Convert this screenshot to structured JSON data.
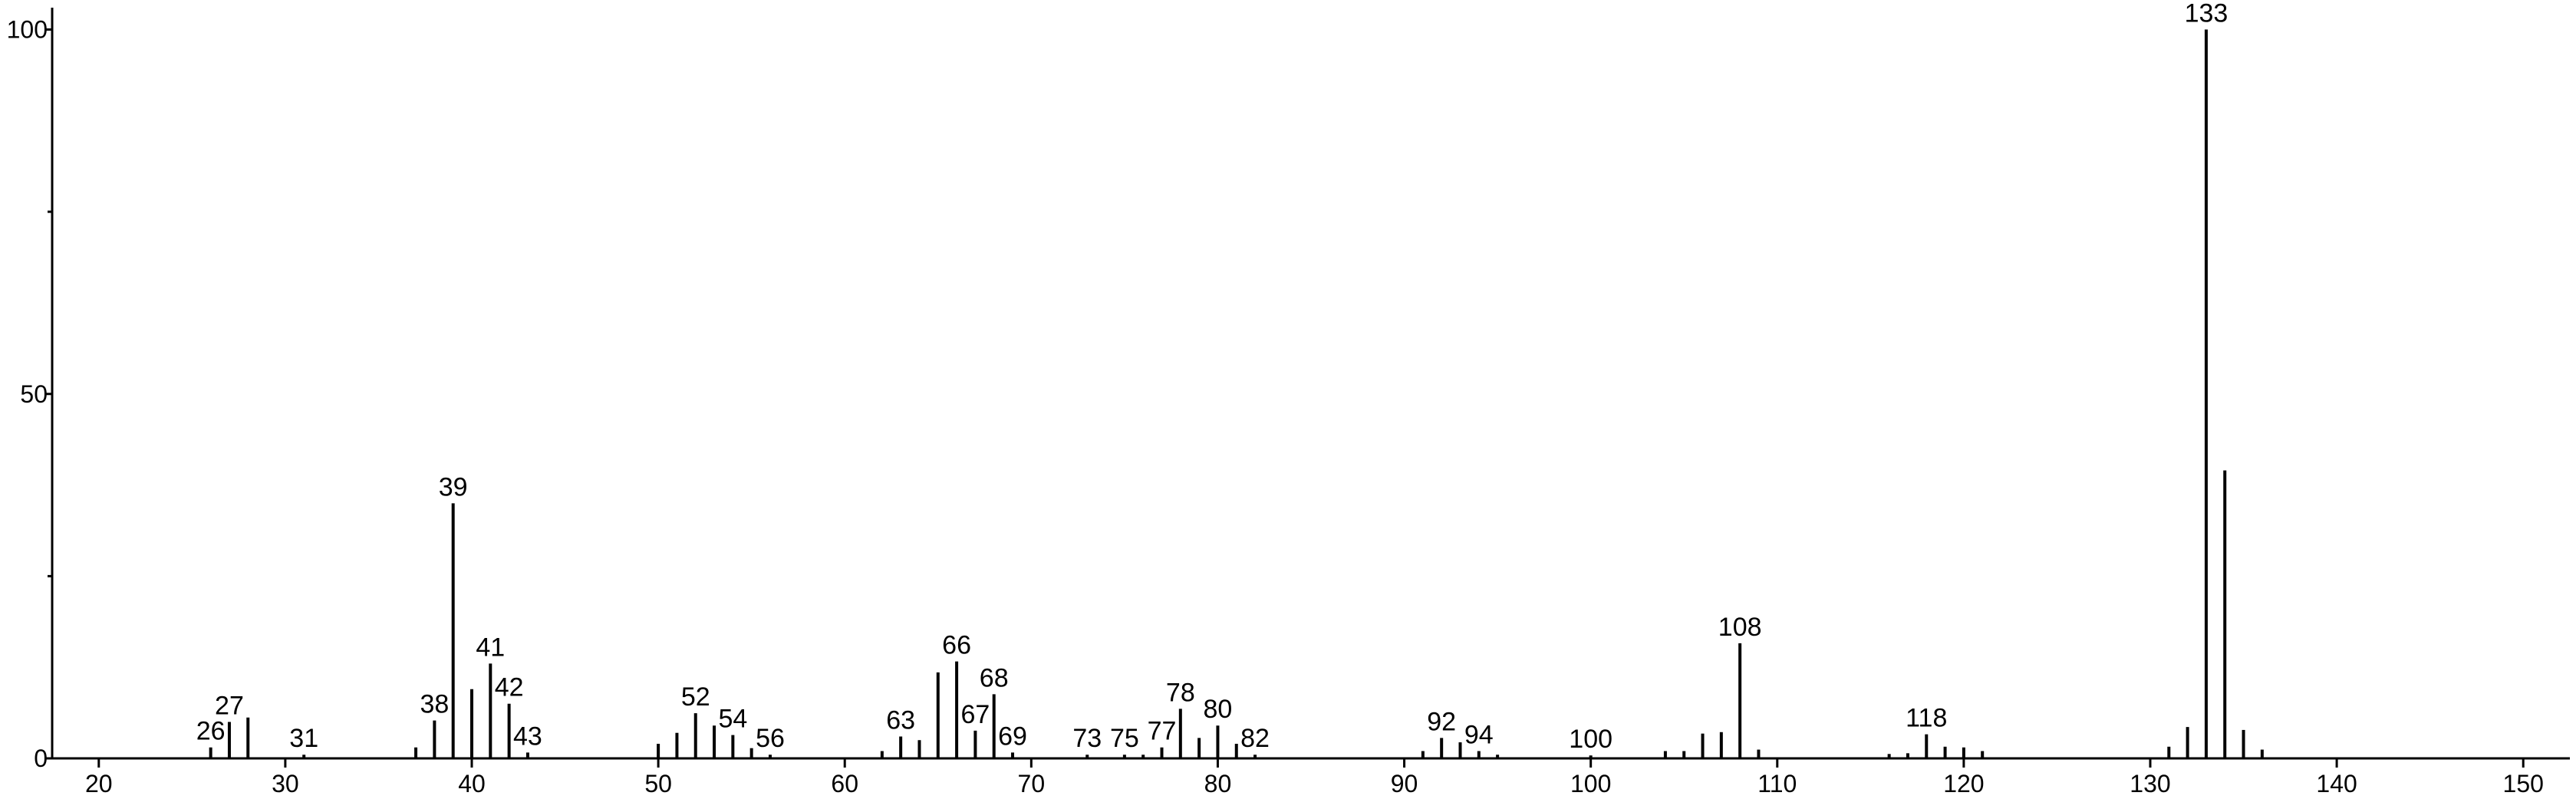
{
  "chart_data": {
    "type": "stick",
    "x": [
      26,
      27,
      28,
      31,
      37,
      38,
      39,
      40,
      41,
      42,
      43,
      50,
      51,
      52,
      53,
      54,
      55,
      56,
      62,
      63,
      64,
      65,
      66,
      67,
      68,
      69,
      73,
      75,
      76,
      77,
      78,
      79,
      80,
      81,
      82,
      91,
      92,
      93,
      94,
      95,
      100,
      104,
      105,
      106,
      107,
      108,
      109,
      116,
      117,
      118,
      119,
      120,
      121,
      131,
      132,
      133,
      134,
      135,
      136
    ],
    "values": [
      1.5,
      5.0,
      5.6,
      0.5,
      1.5,
      5.2,
      35,
      9.5,
      13,
      7.5,
      0.8,
      2,
      3.5,
      6.2,
      4.5,
      3.2,
      1.4,
      0.5,
      1,
      3,
      2.5,
      11.8,
      13.3,
      3.8,
      8.8,
      0.8,
      0.5,
      0.5,
      0.5,
      1.5,
      6.8,
      2.8,
      4.5,
      2,
      0.5,
      1,
      2.8,
      2.2,
      1,
      0.5,
      0.4,
      1,
      1,
      3.4,
      3.6,
      15.8,
      1.2,
      0.6,
      0.7,
      3.3,
      1.6,
      1.5,
      1,
      1.6,
      4.3,
      100,
      39.5,
      3.9,
      1.2
    ],
    "show_label": [
      true,
      true,
      false,
      true,
      false,
      true,
      true,
      false,
      true,
      true,
      true,
      false,
      false,
      true,
      false,
      true,
      false,
      true,
      false,
      true,
      false,
      false,
      true,
      true,
      true,
      true,
      true,
      true,
      false,
      true,
      true,
      false,
      true,
      false,
      true,
      false,
      true,
      false,
      true,
      false,
      true,
      false,
      false,
      false,
      false,
      true,
      false,
      false,
      false,
      true,
      false,
      false,
      false,
      false,
      false,
      true,
      false,
      false,
      false
    ],
    "color": "#000000",
    "xlim": [
      17.5,
      152.5
    ],
    "ylim": [
      0,
      103
    ],
    "xticks": [
      20,
      30,
      40,
      50,
      60,
      70,
      80,
      90,
      100,
      110,
      120,
      130,
      140,
      150
    ],
    "yticks": [
      0,
      50,
      100
    ],
    "yminorticks": [
      25,
      75
    ]
  }
}
